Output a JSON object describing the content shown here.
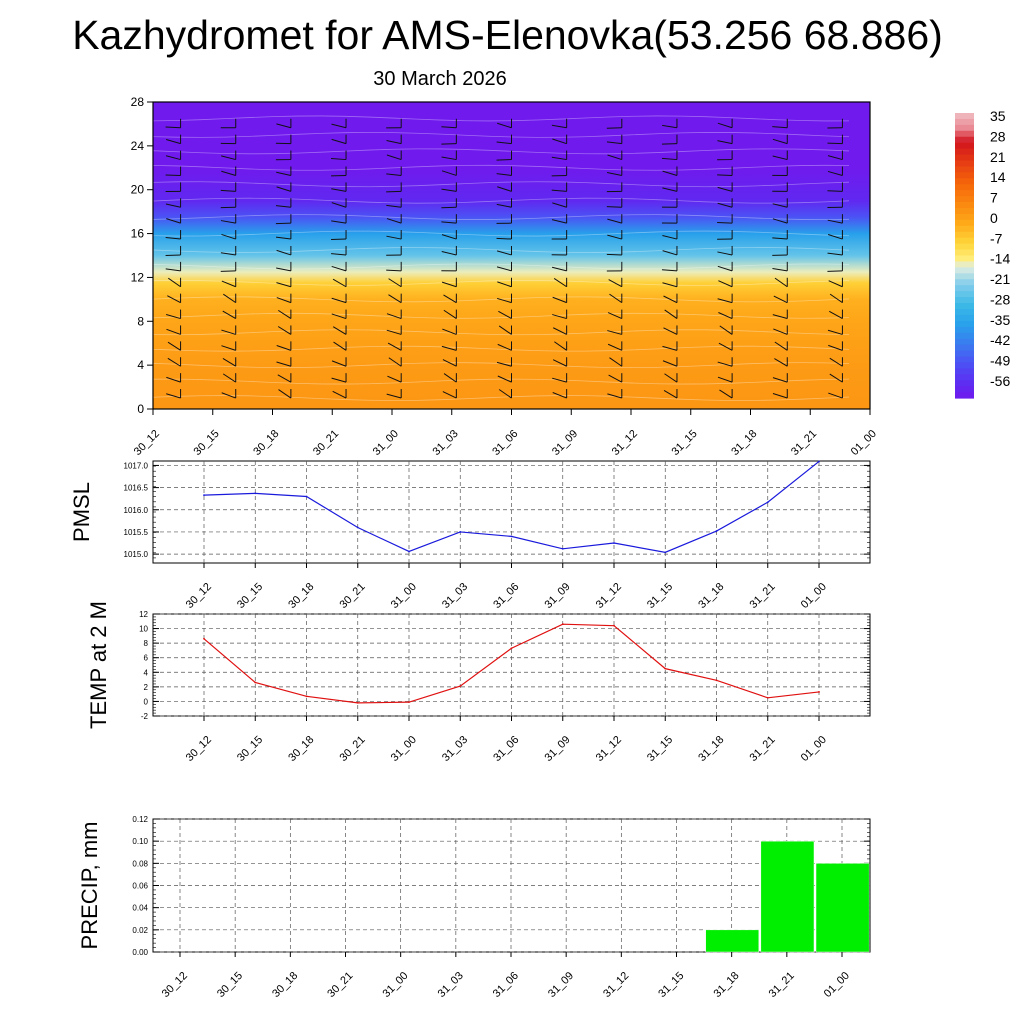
{
  "title": "Kazhydromet for AMS-Elenovka(53.256 68.886)",
  "subtitle": "30 March 2026",
  "colors": {
    "pmsl_line": "#1a1adc",
    "temp_line": "#e01010",
    "precip_bar": "#00ee00",
    "grid": "#555555"
  },
  "chart_data": [
    {
      "type": "heatmap",
      "name": "vertical-profile",
      "x_ticks": [
        "30_12",
        "30_15",
        "30_18",
        "30_21",
        "31_00",
        "31_03",
        "31_06",
        "31_09",
        "31_12",
        "31_15",
        "31_18",
        "31_21",
        "01_00"
      ],
      "y_ticks": [
        0,
        4,
        8,
        12,
        16,
        20,
        24,
        28
      ],
      "ylim": [
        0,
        28
      ],
      "colorbar": {
        "labels": [
          35,
          28,
          21,
          14,
          7,
          0,
          -7,
          -14,
          -21,
          -28,
          -35,
          -42,
          -49,
          -56
        ],
        "range": [
          -60,
          38
        ]
      },
      "profile_temperature_by_level": [
        {
          "level": 0,
          "value": 4
        },
        {
          "level": 4,
          "value": 3
        },
        {
          "level": 8,
          "value": 1
        },
        {
          "level": 10,
          "value": -1
        },
        {
          "level": 11.5,
          "value": -6
        },
        {
          "level": 12.5,
          "value": -14
        },
        {
          "level": 14,
          "value": -24
        },
        {
          "level": 16,
          "value": -35
        },
        {
          "level": 17.5,
          "value": -48
        },
        {
          "level": 19,
          "value": -56
        },
        {
          "level": 22,
          "value": -60
        },
        {
          "level": 28,
          "value": -61
        }
      ]
    },
    {
      "type": "line",
      "name": "pmsl",
      "ylabel": "PMSL",
      "categories": [
        "30_12",
        "30_15",
        "30_18",
        "30_21",
        "31_00",
        "31_03",
        "31_06",
        "31_09",
        "31_12",
        "31_15",
        "31_18",
        "31_21",
        "01_00"
      ],
      "y_ticks": [
        "1015.0",
        "1015.5",
        "1016.0",
        "1016.5",
        "1017.0"
      ],
      "ylim": [
        1014.8,
        1017.1
      ],
      "values": [
        1016.33,
        1016.37,
        1016.3,
        1015.6,
        1015.06,
        1015.5,
        1015.4,
        1015.12,
        1015.25,
        1015.04,
        1015.52,
        1016.17,
        1017.09
      ]
    },
    {
      "type": "line",
      "name": "temp-2m",
      "ylabel": "TEMP at 2 M",
      "categories": [
        "30_12",
        "30_15",
        "30_18",
        "30_21",
        "31_00",
        "31_03",
        "31_06",
        "31_09",
        "31_12",
        "31_15",
        "31_18",
        "31_21",
        "01_00"
      ],
      "y_ticks": [
        "-2",
        "0",
        "2",
        "4",
        "6",
        "8",
        "10",
        "12"
      ],
      "ylim": [
        -2,
        12
      ],
      "values": [
        8.6,
        2.6,
        0.7,
        -0.2,
        -0.1,
        2.1,
        7.3,
        10.6,
        10.4,
        4.5,
        2.9,
        0.5,
        1.3
      ]
    },
    {
      "type": "bar",
      "name": "precip",
      "ylabel": "PRECIP, mm",
      "categories": [
        "30_12",
        "30_15",
        "30_18",
        "30_21",
        "31_00",
        "31_03",
        "31_06",
        "31_09",
        "31_12",
        "31_15",
        "31_18",
        "31_21",
        "01_00"
      ],
      "y_ticks": [
        "0.00",
        "0.02",
        "0.04",
        "0.06",
        "0.08",
        "0.10",
        "0.12"
      ],
      "ylim": [
        0,
        0.12
      ],
      "values": [
        0,
        0,
        0,
        0,
        0,
        0,
        0,
        0,
        0,
        0,
        0.02,
        0.1,
        0.08
      ]
    }
  ]
}
